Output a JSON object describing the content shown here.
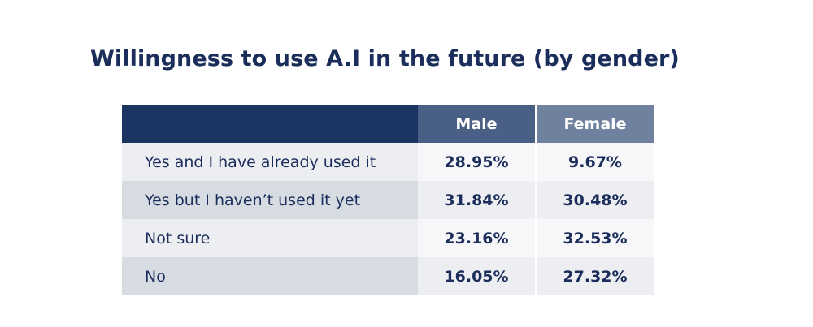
{
  "chart_data": {
    "type": "table",
    "title": "Willingness to use A.I in the future (by gender)",
    "columns": [
      "",
      "Male",
      "Female"
    ],
    "rows": [
      {
        "label": "Yes and I have already used it",
        "male": "28.95%",
        "female": "9.67%"
      },
      {
        "label": "Yes but I haven’t used it yet",
        "male": "31.84%",
        "female": "30.48%"
      },
      {
        "label": "Not sure",
        "male": "23.16%",
        "female": "32.53%"
      },
      {
        "label": "No",
        "male": "16.05%",
        "female": "27.32%"
      }
    ],
    "series": [
      {
        "name": "Male",
        "values": [
          28.95,
          31.84,
          23.16,
          16.05
        ]
      },
      {
        "name": "Female",
        "values": [
          9.67,
          30.48,
          32.53,
          27.32
        ]
      }
    ],
    "categories": [
      "Yes and I have already used it",
      "Yes but I haven’t used it yet",
      "Not sure",
      "No"
    ],
    "colors": {
      "title": "#1b2d5b",
      "header_label": "#1b3562",
      "header_male": "#4a5f86",
      "header_female": "#6f819f"
    }
  }
}
